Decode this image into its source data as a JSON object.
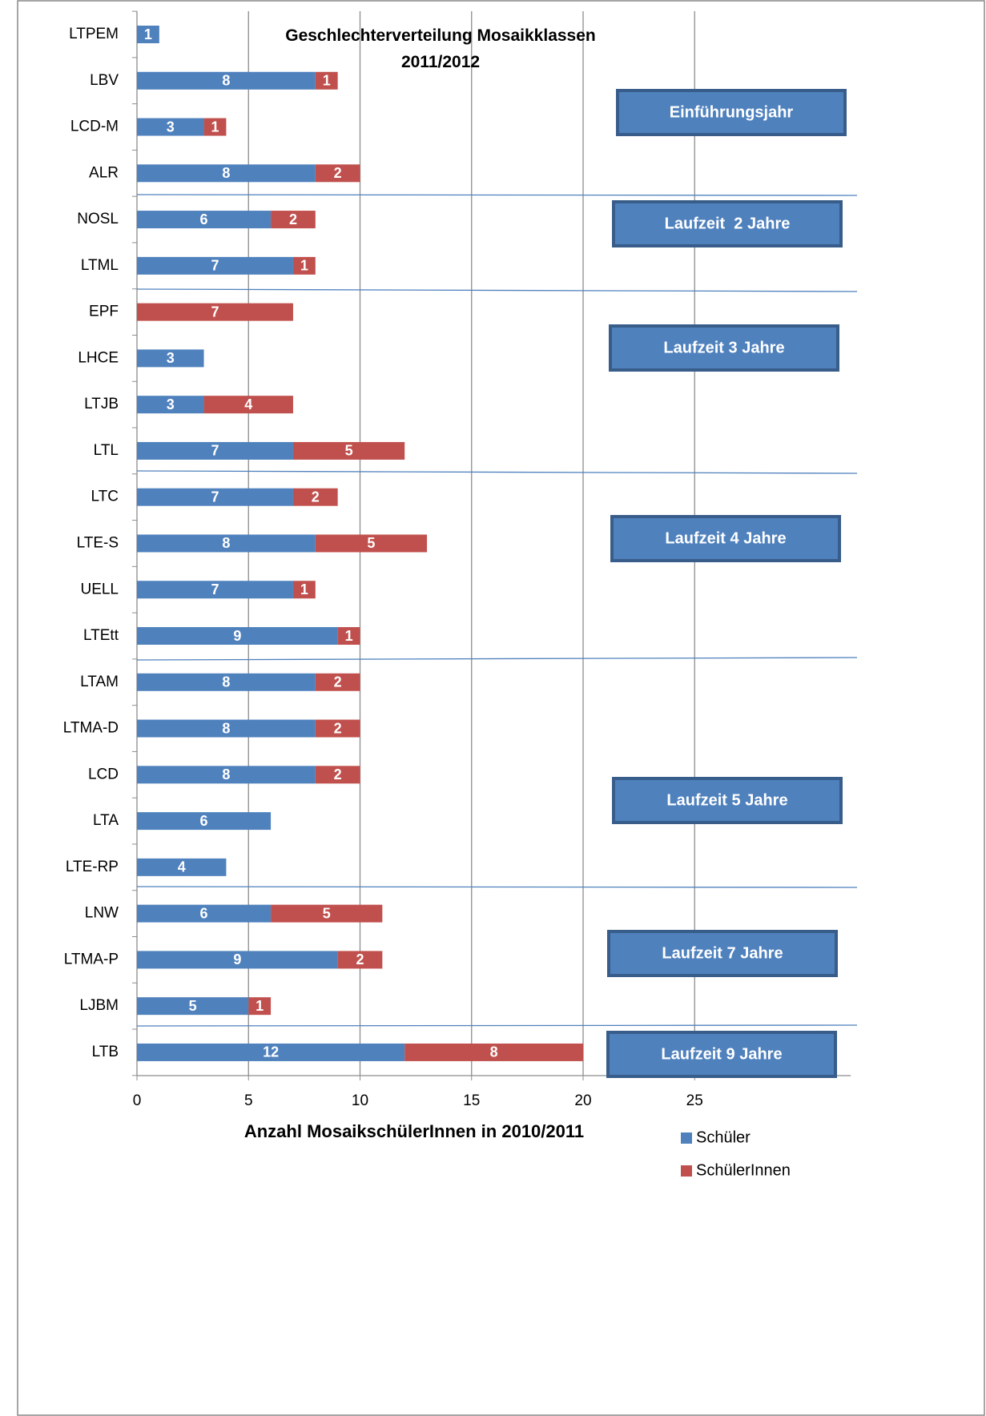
{
  "chart_data": {
    "type": "bar",
    "orientation": "horizontal",
    "stacked": true,
    "title": "Geschlechterverteilung Mosaikklassen 2011/2012",
    "x_label": "Anzahl MosaikschülerInnen in 2010/2011",
    "categories": [
      "LTPEM",
      "LBV",
      "LCD-M",
      "ALR",
      "NOSL",
      "LTML",
      "EPF",
      "LHCE",
      "LTJB",
      "LTL",
      "LTC",
      "LTE-S",
      "UELL",
      "LTEtt",
      "LTAM",
      "LTMA-D",
      "LCD",
      "LTA",
      "LTE-RP",
      "LNW",
      "LTMA-P",
      "LJBM",
      "LTB"
    ],
    "series": [
      {
        "name": "Schüler",
        "color": "#4f81bd",
        "values": [
          1,
          8,
          3,
          8,
          6,
          7,
          null,
          3,
          3,
          7,
          7,
          8,
          7,
          9,
          8,
          8,
          8,
          6,
          4,
          6,
          9,
          5,
          12
        ]
      },
      {
        "name": "SchülerInnen",
        "color": "#c0504d",
        "values": [
          null,
          1,
          1,
          2,
          2,
          1,
          7,
          null,
          4,
          5,
          2,
          5,
          1,
          1,
          2,
          2,
          2,
          null,
          null,
          5,
          2,
          1,
          8
        ]
      }
    ],
    "xlim": [
      0,
      32
    ],
    "xticks": [
      0,
      5,
      10,
      15,
      20,
      25
    ],
    "grid": true,
    "legend": "bottom-right",
    "annotations": [
      "Einführungsjahr",
      "Laufzeit  2 Jahre",
      "Laufzeit 3 Jahre",
      "Laufzeit 4 Jahre",
      "Laufzeit 5 Jahre",
      "Laufzeit 7 Jahre",
      "Laufzeit 9 Jahre"
    ]
  }
}
